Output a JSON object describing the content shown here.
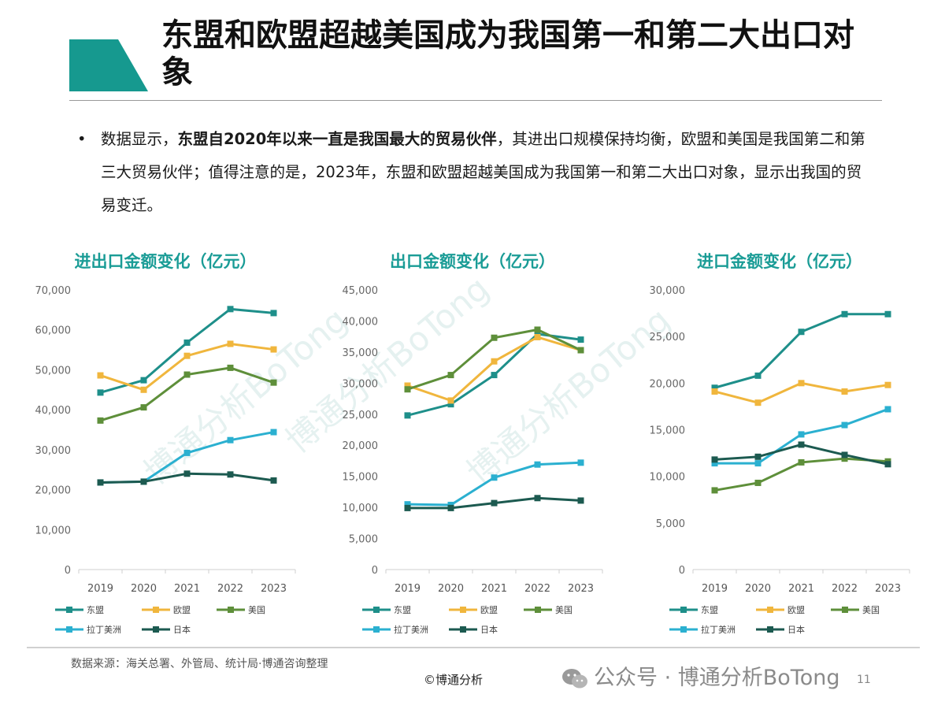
{
  "title": "东盟和欧盟超越美国成为我国第一和第二大出口对象",
  "bullet": {
    "pre": "数据显示，",
    "bold": "东盟自2020年以来一直是我国最大的贸易伙伴",
    "post": "，其进出口规模保持均衡，欧盟和美国是我国第二和第三大贸易伙伴；值得注意的是，2023年，东盟和欧盟超越美国成为我国第一和第二大出口对象，显示出我国的贸易变迁。"
  },
  "colors": {
    "accent": "#16998f",
    "东盟": "#1e8f8a",
    "欧盟": "#f0b63d",
    "美国": "#5e8f3a",
    "拉丁美洲": "#2bb0d0",
    "日本": "#1c5a50"
  },
  "watermark": "博通分析BoTong",
  "chart_data": [
    {
      "type": "line",
      "title": "进出口金额变化（亿元）",
      "categories": [
        "2019",
        "2020",
        "2021",
        "2022",
        "2023"
      ],
      "ylim": [
        0,
        70000
      ],
      "yticks": [
        0,
        10000,
        20000,
        30000,
        40000,
        50000,
        60000,
        70000
      ],
      "ytick_labels": [
        "0",
        "10,000",
        "20,000",
        "30,000",
        "40,000",
        "50,000",
        "60,000",
        "70,000"
      ],
      "grid": false,
      "legend_position": "bottom",
      "series": [
        {
          "name": "东盟",
          "values": [
            44300,
            47400,
            56800,
            65200,
            64200
          ]
        },
        {
          "name": "欧盟",
          "values": [
            48600,
            45000,
            53500,
            56500,
            55100
          ]
        },
        {
          "name": "美国",
          "values": [
            37300,
            40600,
            48800,
            50500,
            46800
          ]
        },
        {
          "name": "拉丁美洲",
          "values": [
            21800,
            22000,
            29200,
            32400,
            34400
          ]
        },
        {
          "name": "日本",
          "values": [
            21800,
            22000,
            24000,
            23800,
            22300
          ]
        }
      ]
    },
    {
      "type": "line",
      "title": "出口金额变化（亿元）",
      "categories": [
        "2019",
        "2020",
        "2021",
        "2022",
        "2023"
      ],
      "ylim": [
        0,
        45000
      ],
      "yticks": [
        0,
        5000,
        10000,
        15000,
        20000,
        25000,
        30000,
        35000,
        40000,
        45000
      ],
      "ytick_labels": [
        "0",
        "5,000",
        "10,000",
        "15,000",
        "20,000",
        "25,000",
        "30,000",
        "35,000",
        "40,000",
        "45,000"
      ],
      "grid": false,
      "legend_position": "bottom",
      "series": [
        {
          "name": "东盟",
          "values": [
            24800,
            26600,
            31300,
            37900,
            37000
          ]
        },
        {
          "name": "欧盟",
          "values": [
            29600,
            27200,
            33500,
            37400,
            35300
          ]
        },
        {
          "name": "美国",
          "values": [
            29000,
            31300,
            37300,
            38600,
            35300
          ]
        },
        {
          "name": "拉丁美洲",
          "values": [
            10500,
            10400,
            14800,
            16900,
            17200
          ]
        },
        {
          "name": "日本",
          "values": [
            9900,
            9900,
            10700,
            11500,
            11100
          ]
        }
      ]
    },
    {
      "type": "line",
      "title": "进口金额变化（亿元）",
      "categories": [
        "2019",
        "2020",
        "2021",
        "2022",
        "2023"
      ],
      "ylim": [
        0,
        30000
      ],
      "yticks": [
        0,
        5000,
        10000,
        15000,
        20000,
        25000,
        30000
      ],
      "ytick_labels": [
        "0",
        "5,000",
        "10,000",
        "15,000",
        "20,000",
        "25,000",
        "30,000"
      ],
      "grid": false,
      "legend_position": "bottom",
      "series": [
        {
          "name": "东盟",
          "values": [
            19500,
            20800,
            25500,
            27400,
            27400
          ]
        },
        {
          "name": "欧盟",
          "values": [
            19100,
            17900,
            20000,
            19100,
            19800
          ]
        },
        {
          "name": "美国",
          "values": [
            8500,
            9300,
            11500,
            11900,
            11600
          ]
        },
        {
          "name": "拉丁美洲",
          "values": [
            11400,
            11400,
            14500,
            15500,
            17200
          ]
        },
        {
          "name": "日本",
          "values": [
            11800,
            12100,
            13400,
            12300,
            11300
          ]
        }
      ]
    }
  ],
  "footer": {
    "source": "数据来源：海关总署、外管局、统计局·博通咨询整理",
    "copyright": "©博通分析",
    "wechat": "公众号 · 博通分析BoTong",
    "page": "11"
  }
}
